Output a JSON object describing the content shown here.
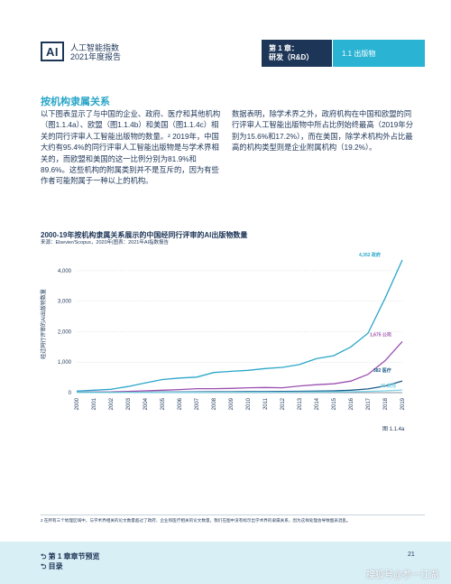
{
  "header": {
    "logo_text": "AI",
    "report_title_line1": "人工智能指数",
    "report_title_line2": "2021年度报告",
    "chapter_line1": "第 1 章：",
    "chapter_line2": "研发（R&D）",
    "section": "1.1 出版物"
  },
  "body": {
    "heading": "按机构隶属关系",
    "left_paragraph": "以下图表显示了与中国的企业、政府、医疗和其他机构（图1.1.4a）、欧盟（图1.1.4b）和美国（图1.1.4c）相关的同行评审人工智能出版物的数量。² 2019年，中国大约有95.4%的同行评审人工智能出版物是与学术界相关的，而欧盟和美国的这一比例分别为81.9%和89.6%。这些机构的附属类别并不是互斥的，因为有些作者可能附属于一种以上的机构。",
    "right_paragraph": "数据表明，除学术界之外，政府机构在中国和欧盟的同行评审人工智能出版物中所占比例始终最高（2019年分别为15.6%和17.2%），而在美国，除学术机构外占比最高的机构类型则是企业附属机构（19.2%）。"
  },
  "chart_title": "2000-19年按机构隶属关系展示的中国经同行评审的AI出版物数量",
  "chart_source": "来源：Elsevier/Scopus，2020年|图表：2021年AI指数报告",
  "figure_label": "图 1.1.4a",
  "chart_data": {
    "type": "line",
    "ylabel": "经过同行评审的AI出版物数量",
    "ylim": [
      0,
      4500
    ],
    "yticks": [
      0,
      1000,
      2000,
      3000,
      4000
    ],
    "ytick_labels": [
      "0",
      "1,000",
      "2,000",
      "3,000",
      "4,000"
    ],
    "x": [
      "2000",
      "2001",
      "2002",
      "2003",
      "2004",
      "2005",
      "2006",
      "2007",
      "2008",
      "2009",
      "2010",
      "2011",
      "2012",
      "2013",
      "2014",
      "2015",
      "2016",
      "2017",
      "2018",
      "2019"
    ],
    "series": [
      {
        "name": "政府",
        "color": "#2aa6c8",
        "end_label": "4,352 政府",
        "values": [
          50,
          80,
          110,
          200,
          320,
          430,
          480,
          510,
          660,
          700,
          730,
          790,
          830,
          920,
          1120,
          1210,
          1500,
          1950,
          3100,
          4352
        ]
      },
      {
        "name": "公司",
        "color": "#9b4fb0",
        "end_label": "1,675 公司",
        "values": [
          10,
          20,
          25,
          40,
          60,
          80,
          100,
          130,
          130,
          140,
          160,
          170,
          160,
          220,
          260,
          290,
          380,
          600,
          1050,
          1675
        ]
      },
      {
        "name": "医疗",
        "color": "#1d5c8a",
        "end_label": "382 医疗",
        "values": [
          5,
          8,
          10,
          12,
          15,
          20,
          22,
          25,
          30,
          30,
          35,
          35,
          40,
          45,
          50,
          60,
          80,
          120,
          220,
          382
        ]
      },
      {
        "name": "其他",
        "color": "#7fd4e6",
        "end_label": "85 其他",
        "values": [
          2,
          3,
          4,
          5,
          6,
          8,
          9,
          10,
          12,
          12,
          14,
          15,
          16,
          18,
          20,
          24,
          30,
          40,
          60,
          85
        ]
      }
    ],
    "grid": true
  },
  "footnote": "2 在所有三个地理区域中，与学术界相关的论文数量超过了政府、企业和医疗相关的论文数量。我们在图中没有标示出学术界的隶属关系，因为这样处理会导致图表混乱。",
  "footer": {
    "prev_link": "第 1 章章节预览",
    "toc_link": "目录",
    "arrow1": "⮌",
    "arrow2": "⮌",
    "page_number": "21",
    "watermark": "搜狐号@参一江湖"
  }
}
